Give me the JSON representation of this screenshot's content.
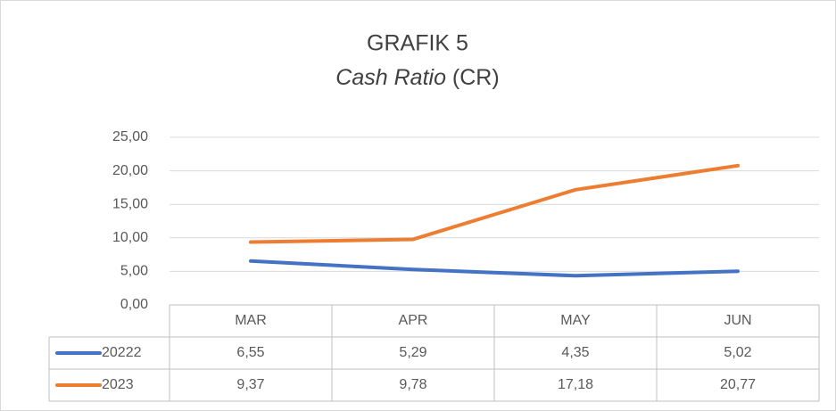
{
  "chart_data": {
    "type": "line",
    "title": "GRAFIK 5",
    "subtitle": {
      "italic": "Cash Ratio",
      "normal": "(CR)"
    },
    "categories": [
      "MAR",
      "APR",
      "MAY",
      "JUN"
    ],
    "series": [
      {
        "name": "20222",
        "color": "#4472c4",
        "values": [
          6.55,
          5.29,
          4.35,
          5.02
        ],
        "value_labels": [
          "6,55",
          "5,29",
          "4,35",
          "5,02"
        ]
      },
      {
        "name": "2023",
        "color": "#ed7d31",
        "values": [
          9.37,
          9.78,
          17.18,
          20.77
        ],
        "value_labels": [
          "9,37",
          "9,78",
          "17,18",
          "20,77"
        ]
      }
    ],
    "ylim": [
      0,
      25
    ],
    "yticks": [
      {
        "value": 0,
        "label": "0,00"
      },
      {
        "value": 5,
        "label": "5,00"
      },
      {
        "value": 10,
        "label": "10,00"
      },
      {
        "value": 15,
        "label": "15,00"
      },
      {
        "value": 20,
        "label": "20,00"
      },
      {
        "value": 25,
        "label": "25,00"
      }
    ],
    "grid": true,
    "data_table": true
  }
}
